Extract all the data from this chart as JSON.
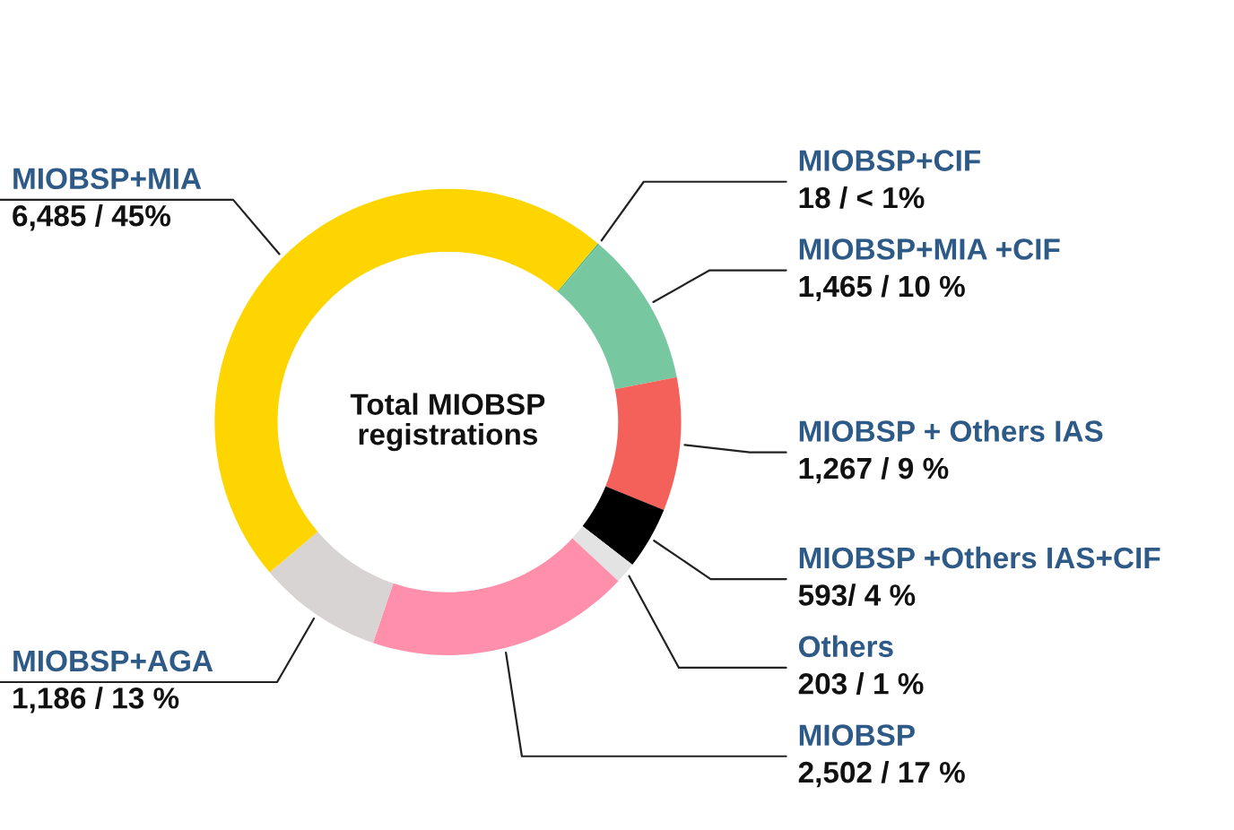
{
  "chart_data": {
    "type": "donut",
    "categories": [
      "MIOBSP+CIF",
      "MIOBSP+MIA +CIF",
      "MIOBSP + Others IAS",
      "MIOBSP +Others IAS+CIF",
      "Others",
      "MIOBSP",
      "MIOBSP+AGA",
      "MIOBSP+MIA"
    ],
    "values": [
      18,
      1465,
      1267,
      593,
      203,
      2502,
      1186,
      6485
    ],
    "colors": [
      "#5fb98e",
      "#77c8a0",
      "#f4605a",
      "#000000",
      "#e3e3e3",
      "#ff8fab",
      "#d9d4d4",
      "#ffd500"
    ],
    "value_labels": [
      "18 / < 1%",
      "1,465 / 10 %",
      "1,267 / 9 %",
      "593/ 4 %",
      "203 / 1 %",
      "2,502 / 17 %",
      "1,186 / 13 %",
      "6,485 / 45%"
    ],
    "annotations": [
      "Total MIOBSP\nregistrations"
    ]
  }
}
